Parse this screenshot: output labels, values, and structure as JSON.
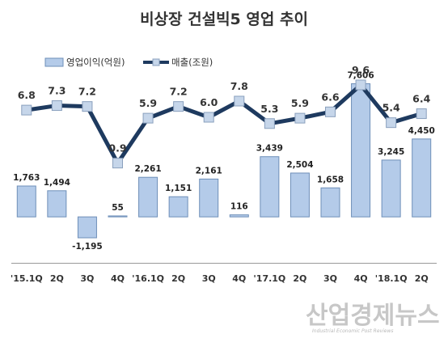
{
  "chart_data": {
    "type": "bar+line",
    "title": "비상장 건설빅5 영업 추이",
    "categories": [
      "'15.1Q",
      "2Q",
      "3Q",
      "4Q",
      "'16.1Q",
      "2Q",
      "3Q",
      "4Q",
      "'17.1Q",
      "2Q",
      "3Q",
      "4Q",
      "'18.1Q",
      "2Q"
    ],
    "series": [
      {
        "name": "영업이익(억원)",
        "type": "bar",
        "color": "#b4cbe9",
        "values": [
          1763,
          1494,
          -1195,
          55,
          2261,
          1151,
          2161,
          116,
          3439,
          2504,
          1658,
          7606,
          3245,
          4450
        ],
        "labels": [
          "1,763",
          "1,494",
          "-1,195",
          "55",
          "2,261",
          "1,151",
          "2,161",
          "116",
          "3,439",
          "2,504",
          "1,658",
          "7,606",
          "3,245",
          "4,450"
        ]
      },
      {
        "name": "매출(조원)",
        "type": "line",
        "color": "#1e3a5f",
        "values": [
          6.8,
          7.3,
          7.2,
          0.9,
          5.9,
          7.2,
          6.0,
          7.8,
          5.3,
          5.9,
          6.6,
          9.6,
          5.4,
          6.4
        ],
        "labels": [
          "6.8",
          "7.3",
          "7.2",
          "0.9",
          "5.9",
          "7.2",
          "6.0",
          "7.8",
          "5.3",
          "5.9",
          "6.6",
          "9.6",
          "5.4",
          "6.4"
        ]
      }
    ],
    "bar_axis": {
      "ylim": [
        -3550,
        8000
      ]
    },
    "line_axis": {
      "ylim": [
        -12,
        10.5
      ]
    },
    "legend_position": "top-left",
    "grid": false
  },
  "watermark": {
    "main": "산업경제뉴스",
    "sub": "Industrial Economic Post Reviews"
  }
}
